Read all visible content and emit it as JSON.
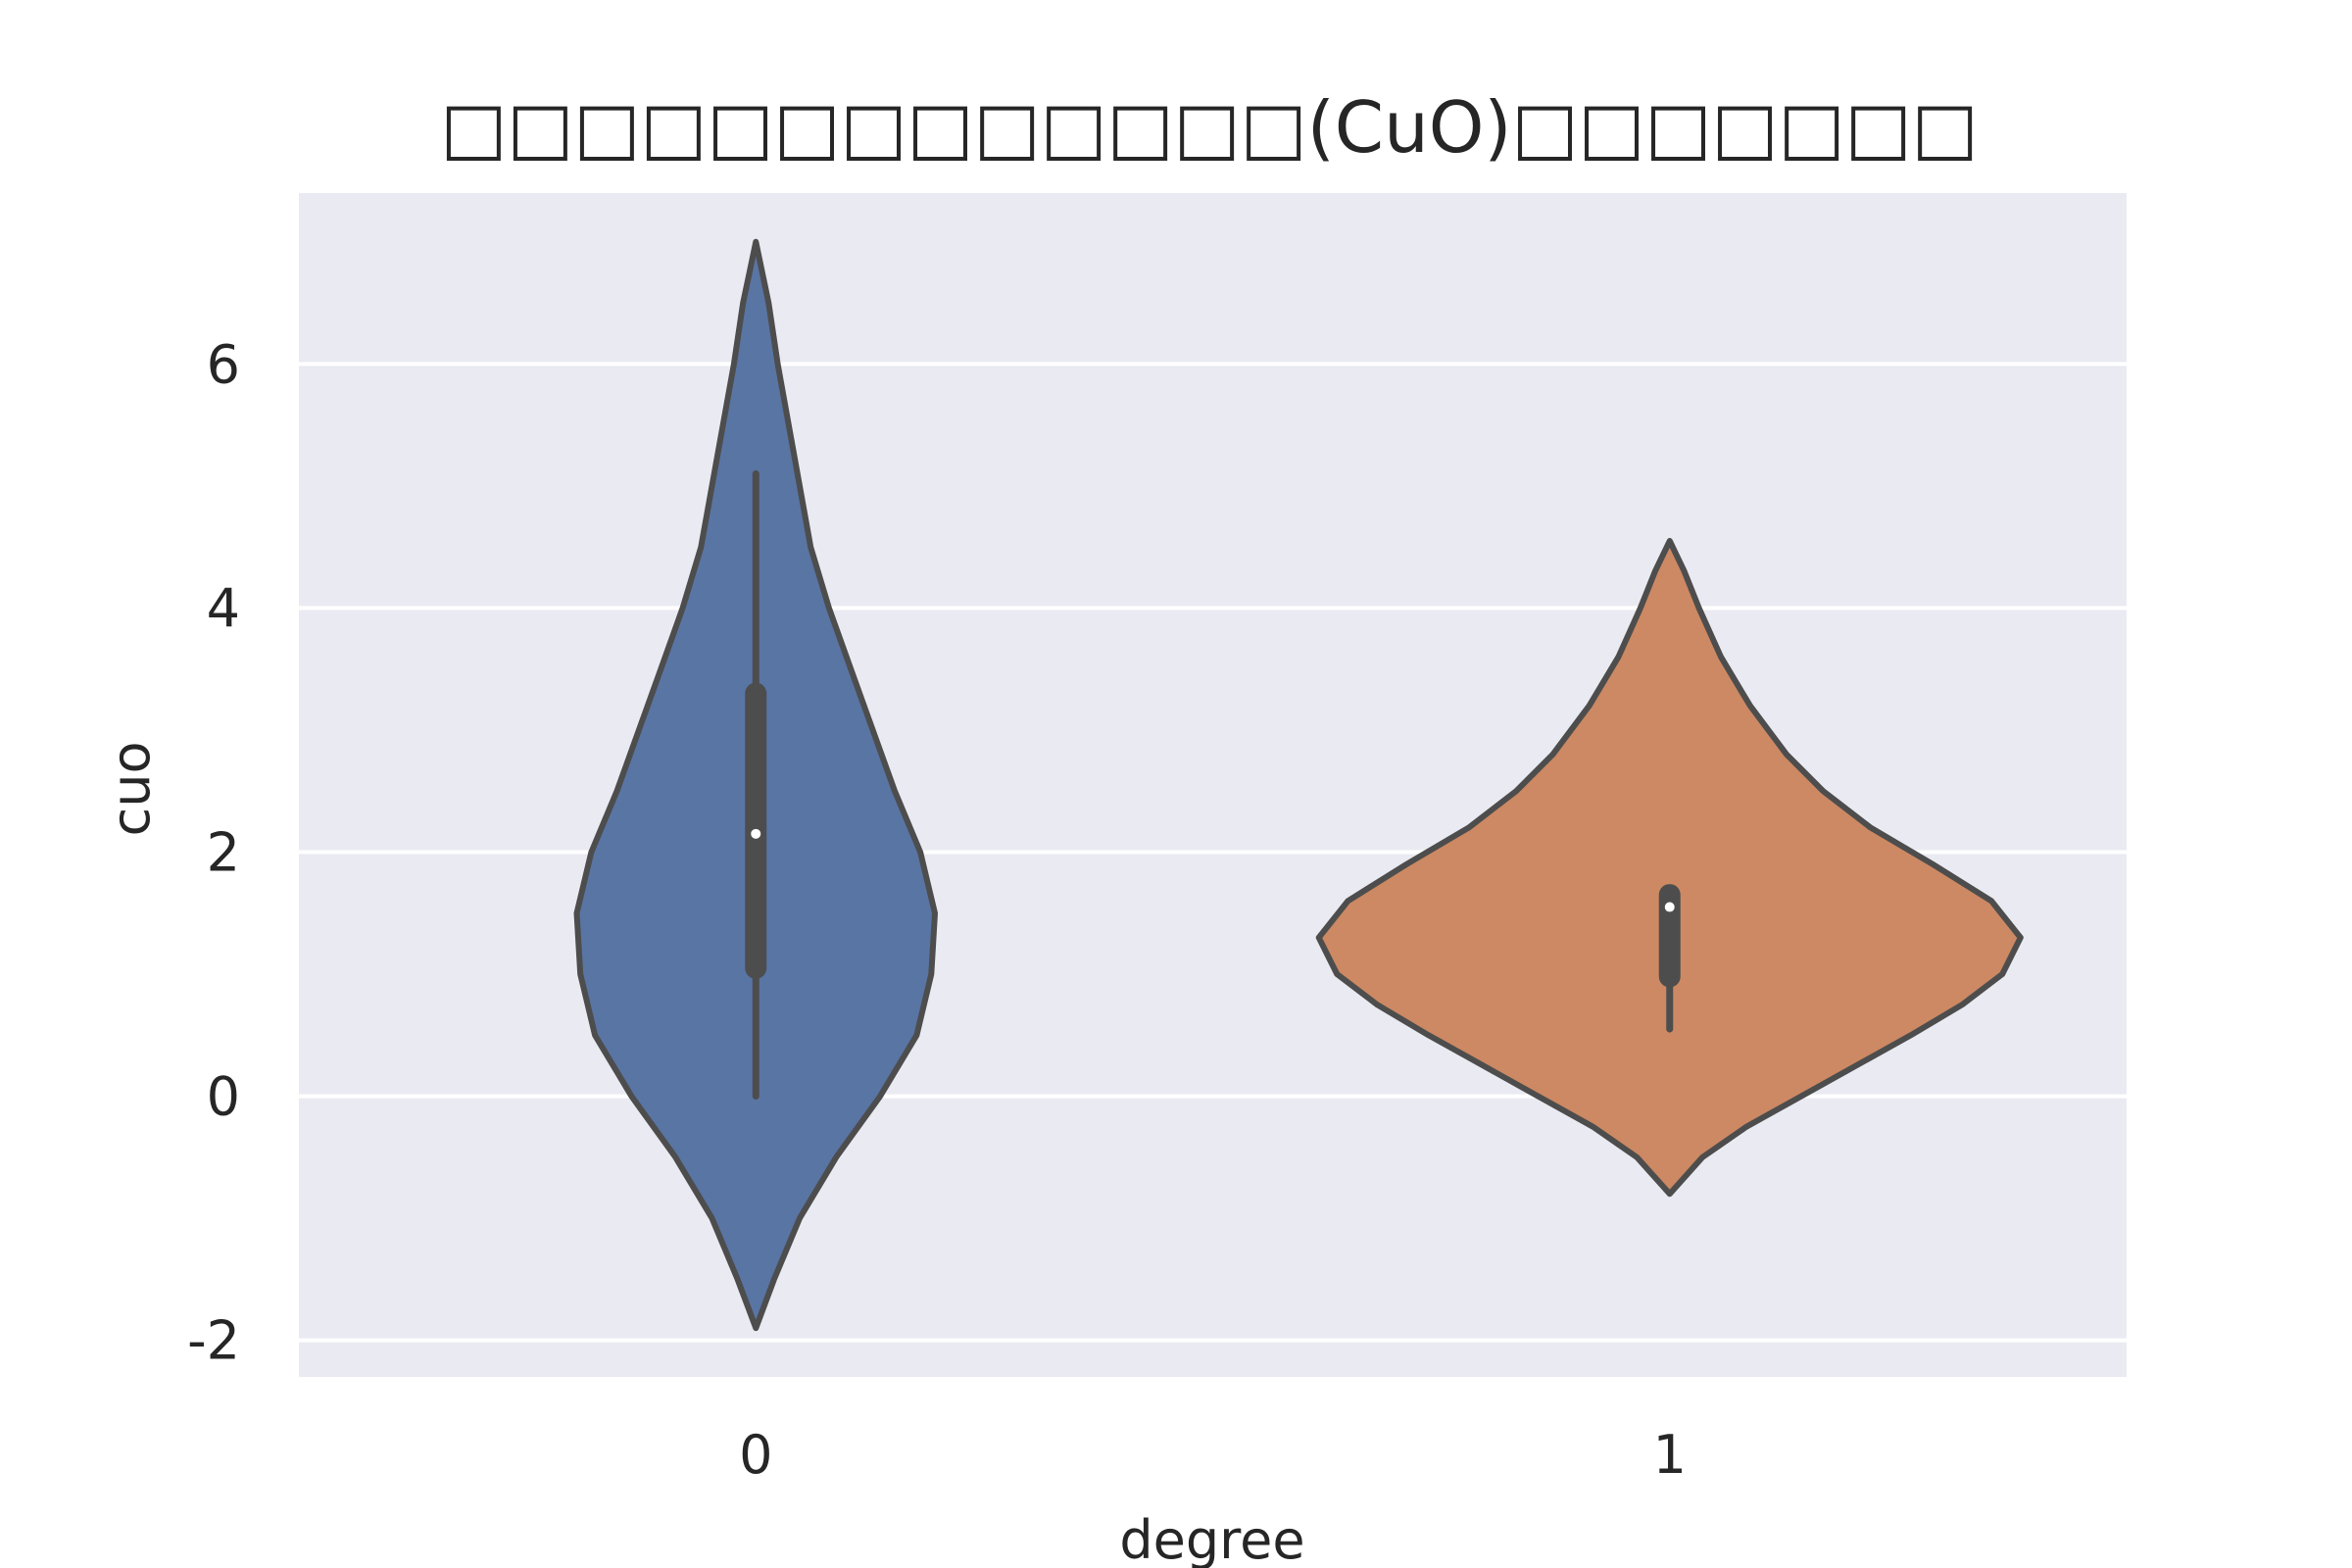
{
  "chart_data": {
    "type": "violin",
    "title": "□□□□□□□□□□□□□(CuO)□□□□□□□",
    "xlabel": "degree",
    "ylabel": "cuo",
    "categories": [
      "0",
      "1"
    ],
    "ylim": [
      -2.3,
      7.4
    ],
    "yticks": [
      -2,
      0,
      2,
      4,
      6
    ],
    "ytick_labels": [
      "-2",
      "0",
      "2",
      "4",
      "6"
    ],
    "grid": true,
    "series": [
      {
        "category": "0",
        "color": "#5975a4",
        "range": [
          -1.9,
          7.0
        ],
        "whisker": [
          0.0,
          5.1
        ],
        "quartiles": [
          1.05,
          3.3
        ],
        "median": 2.15,
        "profile": [
          [
            -1.9,
            0.0
          ],
          [
            -1.5,
            0.05
          ],
          [
            -1.0,
            0.12
          ],
          [
            -0.5,
            0.22
          ],
          [
            0.0,
            0.34
          ],
          [
            0.5,
            0.44
          ],
          [
            1.0,
            0.48
          ],
          [
            1.5,
            0.49
          ],
          [
            2.0,
            0.45
          ],
          [
            2.5,
            0.38
          ],
          [
            3.0,
            0.32
          ],
          [
            3.5,
            0.26
          ],
          [
            4.0,
            0.2
          ],
          [
            4.5,
            0.15
          ],
          [
            5.0,
            0.12
          ],
          [
            5.5,
            0.09
          ],
          [
            6.0,
            0.06
          ],
          [
            6.5,
            0.035
          ],
          [
            7.0,
            0.0
          ]
        ]
      },
      {
        "category": "1",
        "color": "#cc8963",
        "range": [
          -0.8,
          4.55
        ],
        "whisker": [
          0.55,
          1.65
        ],
        "quartiles": [
          0.98,
          1.65
        ],
        "median": 1.55,
        "profile": [
          [
            -0.8,
            0.0
          ],
          [
            -0.5,
            0.09
          ],
          [
            -0.25,
            0.21
          ],
          [
            0.0,
            0.36
          ],
          [
            0.25,
            0.51
          ],
          [
            0.5,
            0.66
          ],
          [
            0.75,
            0.8
          ],
          [
            1.0,
            0.91
          ],
          [
            1.3,
            0.96
          ],
          [
            1.6,
            0.88
          ],
          [
            1.9,
            0.72
          ],
          [
            2.2,
            0.55
          ],
          [
            2.5,
            0.42
          ],
          [
            2.8,
            0.32
          ],
          [
            3.2,
            0.22
          ],
          [
            3.6,
            0.14
          ],
          [
            4.0,
            0.08
          ],
          [
            4.3,
            0.04
          ],
          [
            4.55,
            0.0
          ]
        ]
      }
    ]
  }
}
